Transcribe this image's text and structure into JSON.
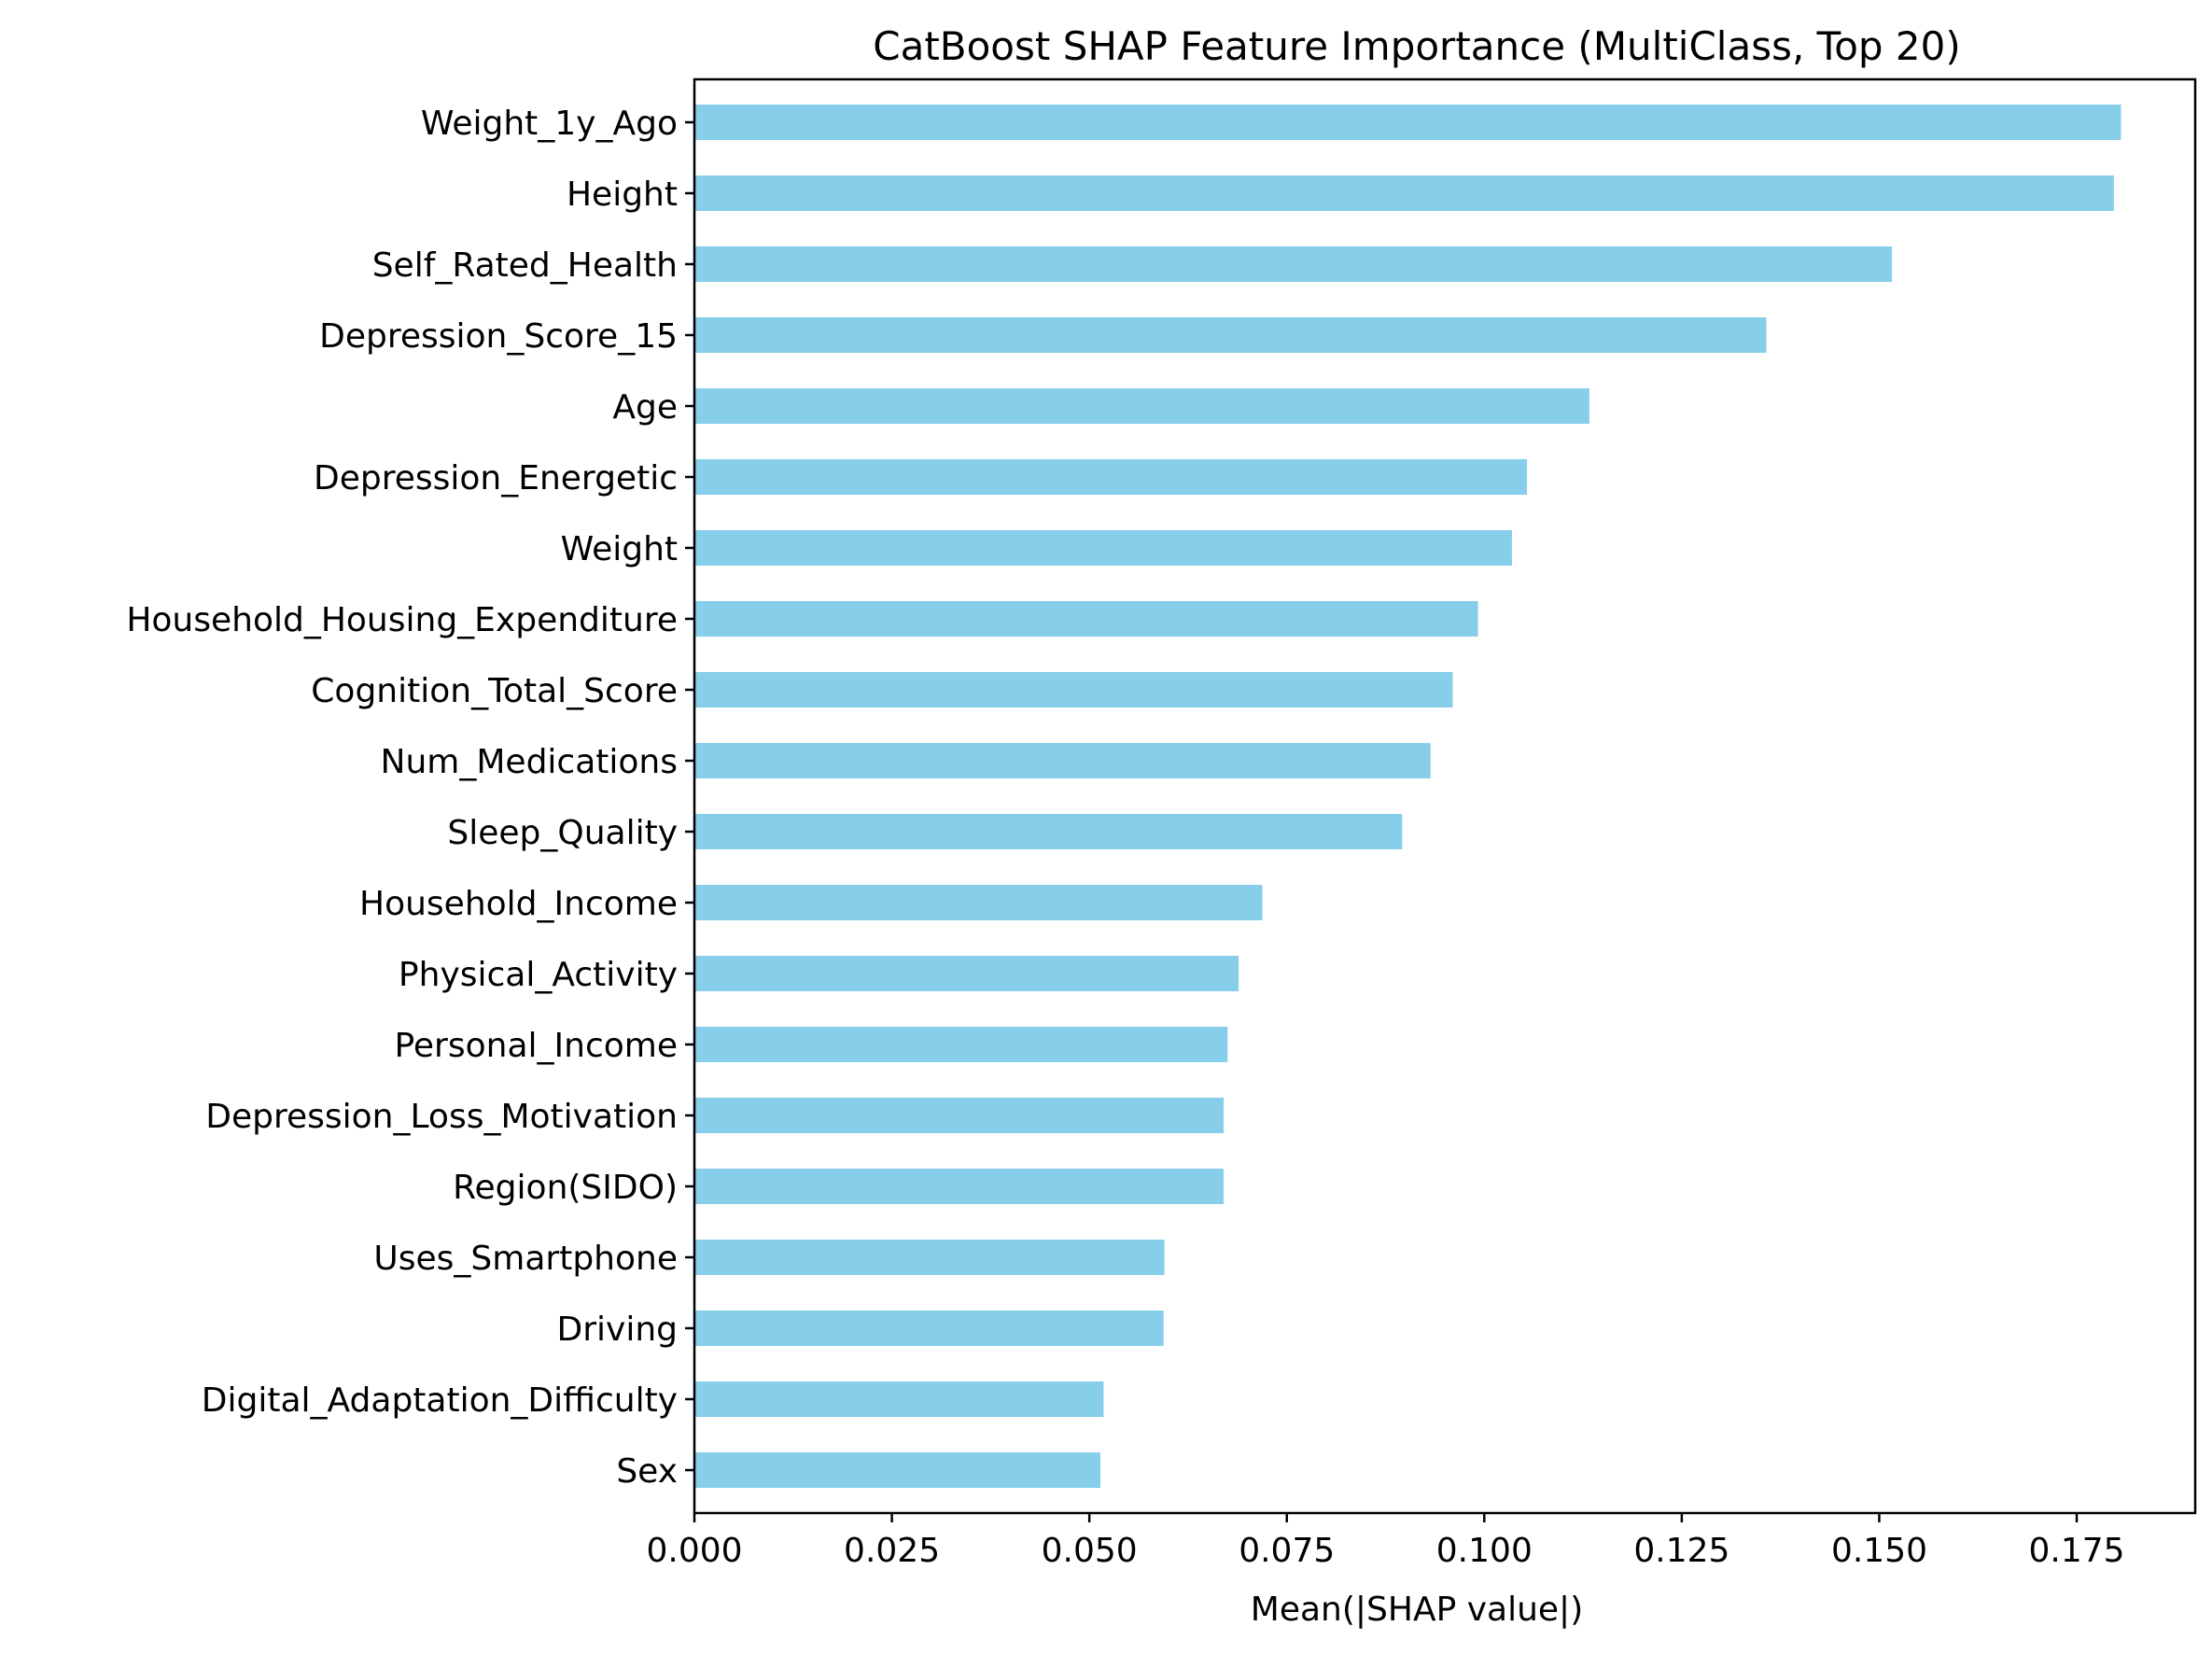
{
  "chart_data": {
    "type": "bar",
    "orientation": "horizontal",
    "title": "CatBoost SHAP Feature Importance (MultiClass, Top 20)",
    "xlabel": "Mean(|SHAP value|)",
    "ylabel": "",
    "xlim": [
      0.0,
      0.19
    ],
    "xticks": [
      "0.000",
      "0.025",
      "0.050",
      "0.075",
      "0.100",
      "0.125",
      "0.150",
      "0.175"
    ],
    "xtick_values": [
      0.0,
      0.025,
      0.05,
      0.075,
      0.1,
      0.125,
      0.15,
      0.175
    ],
    "grid": false,
    "bar_color": "#87ceeb",
    "categories": [
      "Weight_1y_Ago",
      "Height",
      "Self_Rated_Health",
      "Depression_Score_15",
      "Age",
      "Depression_Energetic",
      "Weight",
      "Household_Housing_Expenditure",
      "Cognition_Total_Score",
      "Num_Medications",
      "Sleep_Quality",
      "Household_Income",
      "Physical_Activity",
      "Personal_Income",
      "Depression_Loss_Motivation",
      "Region(SIDO)",
      "Uses_Smartphone",
      "Driving",
      "Digital_Adaptation_Difficulty",
      "Sex"
    ],
    "values": [
      0.1806,
      0.1797,
      0.1516,
      0.1357,
      0.1133,
      0.1054,
      0.1035,
      0.0992,
      0.096,
      0.0932,
      0.0896,
      0.0719,
      0.0689,
      0.0675,
      0.067,
      0.067,
      0.0595,
      0.0594,
      0.0518,
      0.0514
    ]
  }
}
